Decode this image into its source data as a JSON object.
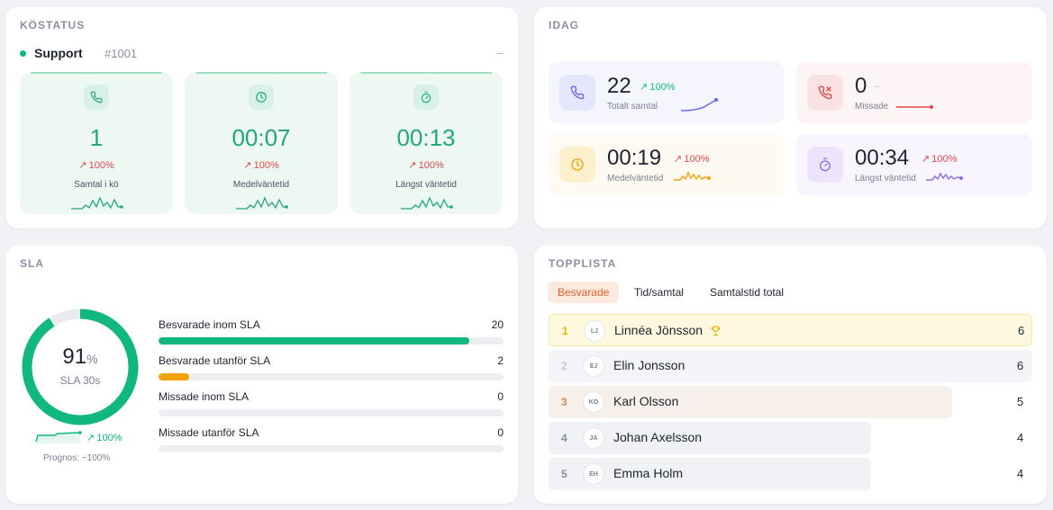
{
  "colors": {
    "green": "#10b77f",
    "red": "#e0464a",
    "orange": "#f2a20c",
    "purple": "#8b6ee6",
    "indigo": "#6366f1",
    "accent_tab": "#e0612a"
  },
  "kostatus": {
    "title": "KÖSTATUS",
    "queue_name": "Support",
    "queue_id": "#1001",
    "collapse": "–",
    "tiles": [
      {
        "icon": "phone-icon",
        "value": "1",
        "trend": "100%",
        "label": "Samtal i kö"
      },
      {
        "icon": "clock-icon",
        "value": "00:07",
        "trend": "100%",
        "label": "Medelväntetid"
      },
      {
        "icon": "stopwatch-icon",
        "value": "00:13",
        "trend": "100%",
        "label": "Längst väntetid"
      }
    ]
  },
  "idag": {
    "title": "IDAG",
    "tiles": [
      {
        "icon": "phone-icon",
        "value": "22",
        "trend": "100%",
        "label": "Totalt samtal"
      },
      {
        "icon": "missed-call-icon",
        "value": "0",
        "trend": "–",
        "label": "Missade"
      },
      {
        "icon": "clock-icon",
        "value": "00:19",
        "trend": "100%",
        "label": "Medelväntetid"
      },
      {
        "icon": "stopwatch-icon",
        "value": "00:34",
        "trend": "100%",
        "label": "Längst väntetid"
      }
    ]
  },
  "sla": {
    "title": "SLA",
    "percent": 91,
    "percent_value": "91",
    "percent_unit": "%",
    "label": "SLA 30s",
    "trend": "100%",
    "prognos": "Prognos: ~100%",
    "rows": [
      {
        "label": "Besvarade inom SLA",
        "count": "20",
        "fill_fraction": 0.9,
        "color": "#10b77f"
      },
      {
        "label": "Besvarade utanför SLA",
        "count": "2",
        "fill_fraction": 0.09,
        "color": "#f2a20c"
      },
      {
        "label": "Missade inom SLA",
        "count": "0",
        "fill_fraction": 0,
        "color": "#e0464a"
      },
      {
        "label": "Missade utanför SLA",
        "count": "0",
        "fill_fraction": 0,
        "color": "#e0464a"
      }
    ]
  },
  "topplista": {
    "title": "TOPPLISTA",
    "tabs": [
      "Besvarade",
      "Tid/samtal",
      "Samtalstid total"
    ],
    "active_tab": "Besvarade",
    "rows": [
      {
        "rank": "1",
        "initials": "LJ",
        "name": "Linnéa Jönsson",
        "score": "6",
        "trophy": "trophy-icon"
      },
      {
        "rank": "2",
        "initials": "EJ",
        "name": "Elin Jonsson",
        "score": "6"
      },
      {
        "rank": "3",
        "initials": "KO",
        "name": "Karl Olsson",
        "score": "5"
      },
      {
        "rank": "4",
        "initials": "JA",
        "name": "Johan Axelsson",
        "score": "4"
      },
      {
        "rank": "5",
        "initials": "EH",
        "name": "Emma Holm",
        "score": "4"
      }
    ]
  }
}
